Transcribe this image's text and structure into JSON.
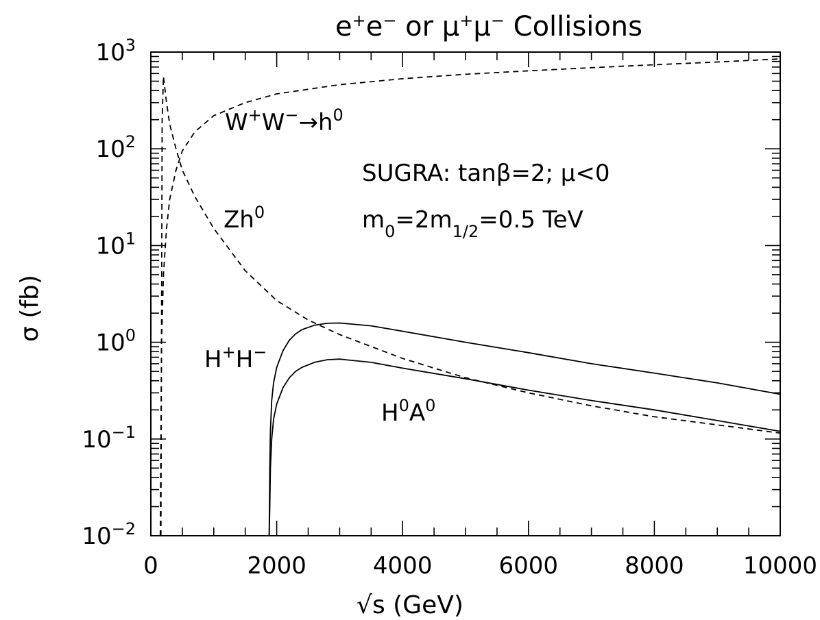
{
  "chart_data": {
    "type": "line",
    "title": "e⁺e⁻ or μ⁺μ⁻ Collisions",
    "title_parts": [
      "e",
      "+",
      "e",
      "−",
      " or ",
      "μ",
      "+",
      "μ",
      "−",
      " Collisions"
    ],
    "xlabel": "√s (GeV)",
    "ylabel": "σ (fb)",
    "xlim": [
      0,
      10000
    ],
    "ylim": [
      0.01,
      1000
    ],
    "yscale": "log",
    "grid": false,
    "x_tick_labels": [
      "0",
      "2000",
      "4000",
      "6000",
      "8000",
      "10000"
    ],
    "y_tick_labels": [
      {
        "base": "10",
        "exp": "−2"
      },
      {
        "base": "10",
        "exp": "−1"
      },
      {
        "base": "10",
        "exp": "0"
      },
      {
        "base": "10",
        "exp": "1"
      },
      {
        "base": "10",
        "exp": "2"
      },
      {
        "base": "10",
        "exp": "3"
      }
    ],
    "annotations": [
      {
        "id": "ww",
        "parts": [
          "W",
          "+",
          "W",
          "−",
          "→h",
          "0"
        ]
      },
      {
        "id": "zh",
        "parts": [
          "Zh",
          "0"
        ]
      },
      {
        "id": "hh",
        "parts": [
          "H",
          "+",
          "H",
          "−"
        ]
      },
      {
        "id": "ha",
        "parts": [
          "H",
          "0",
          "A",
          "0"
        ]
      },
      {
        "id": "sugra",
        "text": "SUGRA: tanβ=2; μ<0"
      },
      {
        "id": "masses",
        "parts": [
          "m",
          "0",
          "=2m",
          "1/2",
          "=0.5 TeV"
        ]
      }
    ],
    "series": [
      {
        "id": "ww-fusion",
        "style": "dashed",
        "x": [
          150,
          170,
          200,
          250,
          300,
          400,
          500,
          700,
          1000,
          1500,
          2000,
          3000,
          4000,
          5000,
          6000,
          7000,
          8000,
          9000,
          10000
        ],
        "y": [
          0.01,
          1.0,
          5,
          15,
          30,
          60,
          95,
          150,
          220,
          300,
          370,
          460,
          530,
          590,
          640,
          690,
          740,
          790,
          850
        ]
      },
      {
        "id": "zh",
        "style": "dashed",
        "x": [
          160,
          180,
          200,
          250,
          300,
          400,
          500,
          700,
          1000,
          1500,
          2000,
          2500,
          3000,
          4000,
          5000,
          6000,
          7000,
          8000,
          9000,
          10000
        ],
        "y": [
          0.01,
          200,
          560,
          300,
          180,
          100,
          60,
          32,
          15,
          5.5,
          2.7,
          1.7,
          1.2,
          0.68,
          0.43,
          0.3,
          0.22,
          0.17,
          0.14,
          0.115
        ]
      },
      {
        "id": "charged-higgs-pair",
        "style": "solid",
        "x": [
          1880,
          1890,
          1900,
          1920,
          1950,
          2000,
          2100,
          2200,
          2300,
          2400,
          2600,
          2800,
          3000,
          3500,
          4000,
          5000,
          6000,
          7000,
          8000,
          9000,
          10000
        ],
        "y": [
          0.01,
          0.05,
          0.12,
          0.25,
          0.38,
          0.55,
          0.82,
          1.05,
          1.22,
          1.35,
          1.5,
          1.57,
          1.58,
          1.48,
          1.3,
          1.0,
          0.78,
          0.6,
          0.48,
          0.38,
          0.29
        ]
      },
      {
        "id": "neutral-higgs-ha",
        "style": "solid",
        "x": [
          1880,
          1890,
          1900,
          1920,
          1950,
          2000,
          2100,
          2200,
          2300,
          2400,
          2600,
          2800,
          3000,
          3500,
          4000,
          5000,
          6000,
          7000,
          8000,
          9000,
          10000
        ],
        "y": [
          0.01,
          0.02,
          0.05,
          0.1,
          0.16,
          0.23,
          0.34,
          0.43,
          0.5,
          0.55,
          0.62,
          0.66,
          0.67,
          0.62,
          0.54,
          0.42,
          0.32,
          0.25,
          0.2,
          0.155,
          0.12
        ]
      }
    ]
  }
}
